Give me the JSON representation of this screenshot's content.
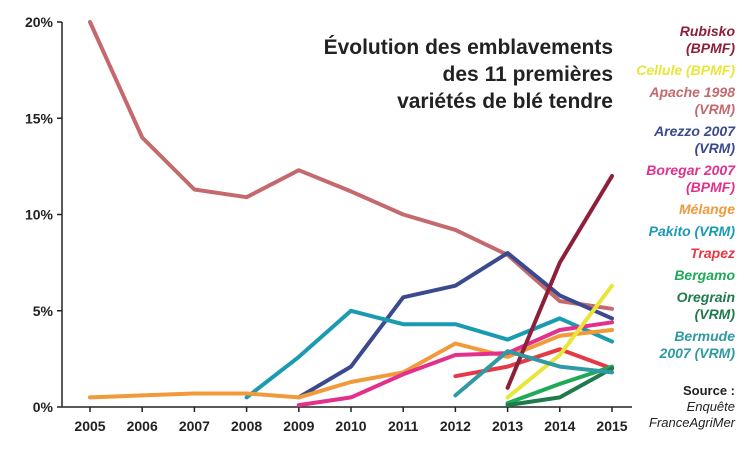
{
  "chart_data": {
    "type": "line",
    "title_lines": [
      "Évolution des emblavements",
      "des 11 premières",
      "variétés de blé tendre"
    ],
    "x": [
      2005,
      2006,
      2007,
      2008,
      2009,
      2010,
      2011,
      2012,
      2013,
      2014,
      2015
    ],
    "y_ticks": [
      "0%",
      "5%",
      "10%",
      "15%",
      "20%"
    ],
    "ylim": [
      0,
      20
    ],
    "x_tick_labels": [
      "2005",
      "2006",
      "2007",
      "2008",
      "2009",
      "2010",
      "2011",
      "2012",
      "2013",
      "2014",
      "2015"
    ],
    "series": [
      {
        "name_lines": [
          "Apache 1998",
          "(VRM)"
        ],
        "color": "#c46a6e",
        "values": [
          20,
          14,
          11.3,
          10.9,
          12.3,
          11.2,
          10,
          9.2,
          7.9,
          5.5,
          5.1
        ]
      },
      {
        "name_lines": [
          "Arezzo 2007",
          "(VRM)"
        ],
        "color": "#3b4a8f",
        "values": [
          null,
          null,
          null,
          null,
          0.5,
          2.1,
          5.7,
          6.3,
          8,
          5.8,
          4.6
        ]
      },
      {
        "name_lines": [
          "Pakito (VRM)"
        ],
        "color": "#1a9bb1",
        "values": [
          null,
          null,
          null,
          0.5,
          2.6,
          5,
          4.3,
          4.3,
          3.5,
          4.6,
          3.4
        ]
      },
      {
        "name_lines": [
          "Mélange"
        ],
        "color": "#f09a3a",
        "values": [
          0.5,
          0.6,
          0.7,
          0.7,
          0.5,
          1.3,
          1.8,
          3.3,
          2.6,
          3.7,
          4
        ]
      },
      {
        "name_lines": [
          "Boregar 2007",
          "(BPMF)"
        ],
        "color": "#e3308c",
        "values": [
          null,
          null,
          null,
          null,
          0.1,
          0.5,
          1.7,
          2.7,
          2.8,
          4,
          4.4
        ]
      },
      {
        "name_lines": [
          "Trapez"
        ],
        "color": "#e63946",
        "values": [
          null,
          null,
          null,
          null,
          null,
          null,
          null,
          1.6,
          2.1,
          3,
          2
        ]
      },
      {
        "name_lines": [
          "Rubisko",
          "(BPMF)"
        ],
        "color": "#8c1f3a",
        "values": [
          null,
          null,
          null,
          null,
          null,
          null,
          null,
          null,
          1,
          7.5,
          12
        ]
      },
      {
        "name_lines": [
          "Cellule (BPMF)"
        ],
        "color": "#e9e53a",
        "values": [
          null,
          null,
          null,
          null,
          null,
          null,
          null,
          null,
          0.5,
          2.7,
          6.3
        ]
      },
      {
        "name_lines": [
          "Bergamo"
        ],
        "color": "#1faa59",
        "values": [
          null,
          null,
          null,
          null,
          null,
          null,
          null,
          null,
          0.2,
          1.2,
          2.1
        ]
      },
      {
        "name_lines": [
          "Oregrain",
          "(VRM)"
        ],
        "color": "#1f7a4c",
        "values": [
          null,
          null,
          null,
          null,
          null,
          null,
          null,
          null,
          0.1,
          0.5,
          2
        ]
      },
      {
        "name_lines": [
          "Bermude",
          "2007 (VRM)"
        ],
        "color": "#2f9aa3",
        "values": [
          null,
          null,
          null,
          null,
          null,
          null,
          null,
          0.6,
          2.9,
          2.1,
          1.8
        ]
      }
    ],
    "legend_order": [
      6,
      7,
      0,
      1,
      4,
      3,
      2,
      5,
      8,
      9,
      10
    ],
    "source_lines": [
      "Source :",
      "Enquête",
      "FranceAgriMer"
    ],
    "grid": false
  }
}
